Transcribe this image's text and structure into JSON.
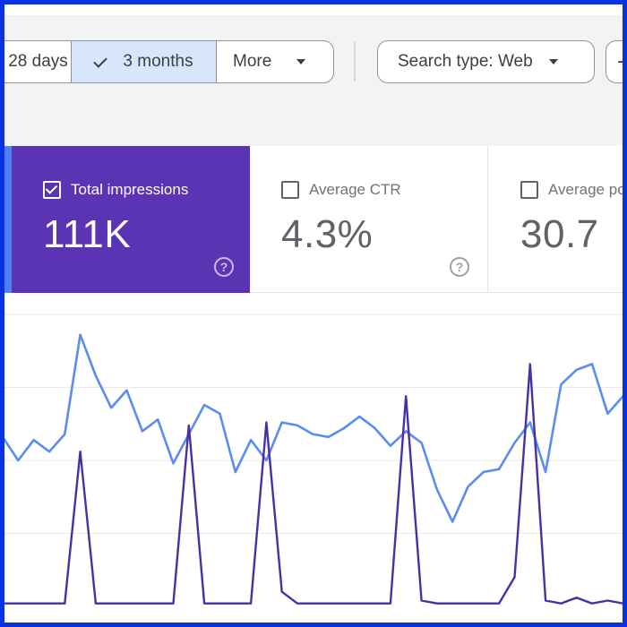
{
  "filters": {
    "range_left_label": "28 days",
    "range_selected_label": "3 months",
    "more_label": "More",
    "search_type_label": "Search type: Web",
    "add_label": "+"
  },
  "cards": [
    {
      "id": "total-impressions",
      "label": "Total impressions",
      "value": "111K",
      "checked": true
    },
    {
      "id": "average-ctr",
      "label": "Average CTR",
      "value": "4.3%",
      "checked": false
    },
    {
      "id": "average-position",
      "label": "Average position",
      "value": "30.7",
      "checked": false
    }
  ],
  "help_glyph": "?",
  "colors": {
    "frame": "#0a32e0",
    "clicks_stripe": "#4f7ff2",
    "impressions_card": "#5a34b3",
    "impressions_line": "#4a2ea6",
    "ctr_line": "#5b8cf2",
    "selected_range": "#d7e6fb"
  },
  "chart_data": {
    "type": "line",
    "x": [
      0,
      1,
      2,
      3,
      4,
      5,
      6,
      7,
      8,
      9,
      10,
      11,
      12,
      13,
      14,
      15,
      16,
      17,
      18,
      19,
      20,
      21,
      22,
      23,
      24,
      25,
      26,
      27,
      28,
      29,
      30,
      31,
      32,
      33,
      34,
      35,
      36,
      37,
      38,
      39,
      40,
      41
    ],
    "ylim": [
      0,
      1
    ],
    "grid": true,
    "series": [
      {
        "values": [
          0.58,
          0.5,
          0.57,
          0.53,
          0.59,
          0.93,
          0.79,
          0.68,
          0.74,
          0.6,
          0.64,
          0.49,
          0.59,
          0.69,
          0.66,
          0.46,
          0.57,
          0.5,
          0.63,
          0.62,
          0.59,
          0.58,
          0.61,
          0.65,
          0.61,
          0.55,
          0.6,
          0.56,
          0.4,
          0.29,
          0.41,
          0.46,
          0.47,
          0.56,
          0.63,
          0.46,
          0.76,
          0.81,
          0.83,
          0.66,
          0.72,
          0.78
        ],
        "color": "#5b8cf2"
      },
      {
        "values": [
          0.01,
          0.01,
          0.01,
          0.01,
          0.01,
          0.53,
          0.01,
          0.01,
          0.01,
          0.01,
          0.01,
          0.01,
          0.62,
          0.01,
          0.01,
          0.01,
          0.01,
          0.63,
          0.05,
          0.01,
          0.01,
          0.01,
          0.01,
          0.01,
          0.01,
          0.01,
          0.72,
          0.02,
          0.01,
          0.01,
          0.01,
          0.01,
          0.01,
          0.1,
          0.83,
          0.02,
          0.01,
          0.03,
          0.01,
          0.02,
          0.01,
          0.03
        ],
        "color": "#4a2ea6"
      }
    ]
  }
}
